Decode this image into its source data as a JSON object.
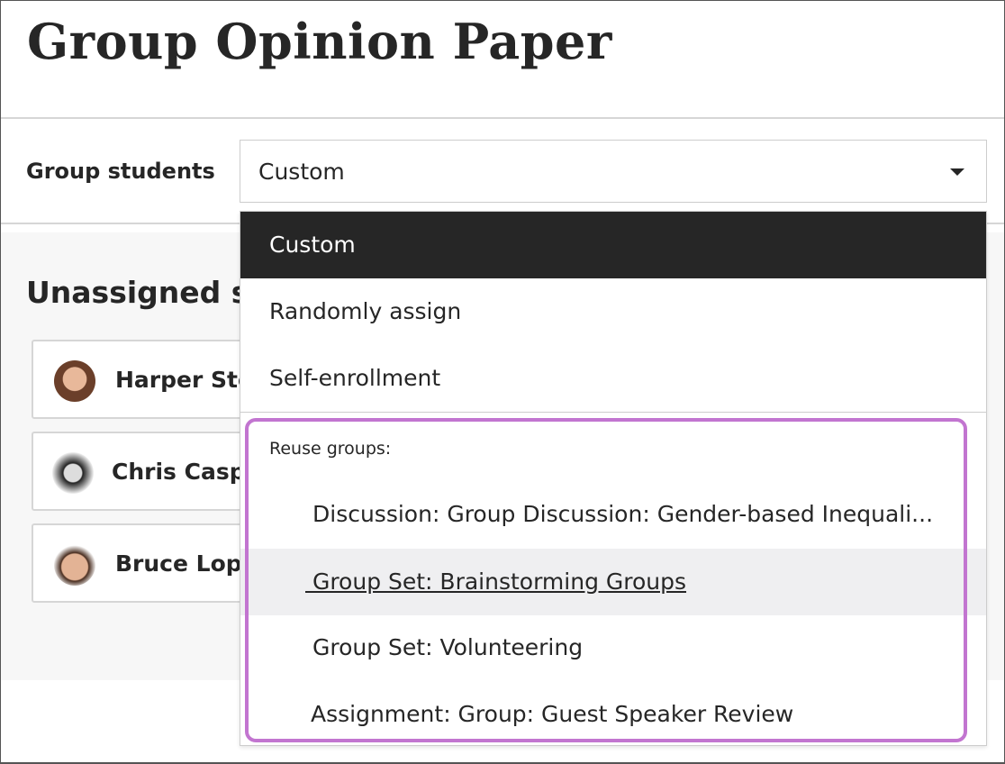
{
  "page": {
    "title": "Group Opinion Paper"
  },
  "group_students": {
    "label": "Group students",
    "selected": "Custom",
    "options": [
      "Custom",
      "Randomly assign",
      "Self-enrollment"
    ],
    "reuse_label": "Reuse groups:",
    "reuse_options": [
      "Discussion: Group Discussion: Gender-based Inequali...",
      " Group Set: Brainstorming Groups",
      "Group Set: Volunteering",
      "Assignment: Group: Guest Speaker Review"
    ],
    "highlight_color": "#c275d0"
  },
  "unassigned": {
    "heading": "Unassigned st",
    "students": [
      {
        "name": "Harper Ste",
        "avatar_color": "#8a5a44"
      },
      {
        "name": "Chris Casp",
        "avatar_color": "#444444"
      },
      {
        "name": "Bruce Lop",
        "avatar_color": "#b07a5a"
      }
    ]
  }
}
